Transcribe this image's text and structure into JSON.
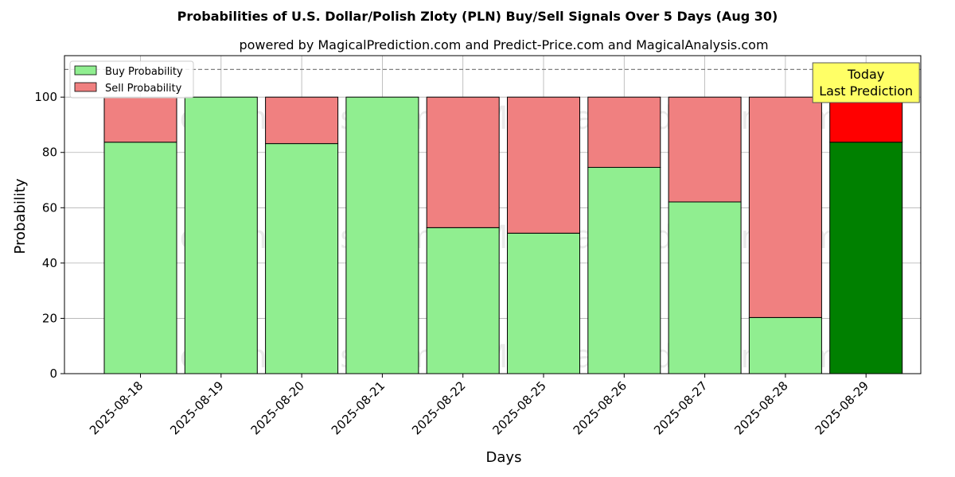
{
  "chart_data": {
    "type": "bar",
    "stacked": true,
    "title": "Probabilities of U.S. Dollar/Polish Zloty (PLN) Buy/Sell Signals Over 5 Days (Aug 30)",
    "subtitle": "powered by MagicalPrediction.com and Predict-Price.com and MagicalAnalysis.com",
    "xlabel": "Days",
    "ylabel": "Probability",
    "ylim": [
      0,
      115
    ],
    "yticks": [
      0,
      20,
      40,
      60,
      80,
      100
    ],
    "grid": true,
    "legend_position": "top-left",
    "reference_line": 110,
    "categories": [
      "2025-08-18",
      "2025-08-19",
      "2025-08-20",
      "2025-08-21",
      "2025-08-22",
      "2025-08-25",
      "2025-08-26",
      "2025-08-27",
      "2025-08-28",
      "2025-08-29"
    ],
    "series": [
      {
        "name": "Buy Probability",
        "values": [
          83.7,
          100,
          83.2,
          100,
          52.8,
          50.8,
          74.6,
          62.1,
          20.3,
          83.7
        ]
      },
      {
        "name": "Sell Probability",
        "values": [
          16.3,
          0,
          16.8,
          0,
          47.2,
          49.2,
          25.4,
          37.9,
          79.7,
          16.3
        ]
      }
    ],
    "colors": {
      "buy": "#90ee90",
      "sell": "#f08080",
      "buy_highlight": "#008000",
      "sell_highlight": "#ff0000",
      "annotation_bg": "#ffff66"
    },
    "annotation": {
      "line1": "Today",
      "line2": "Last Prediction"
    },
    "watermarks": [
      "MagicalAnalysis.com",
      "MagicalPrediction.com"
    ]
  }
}
